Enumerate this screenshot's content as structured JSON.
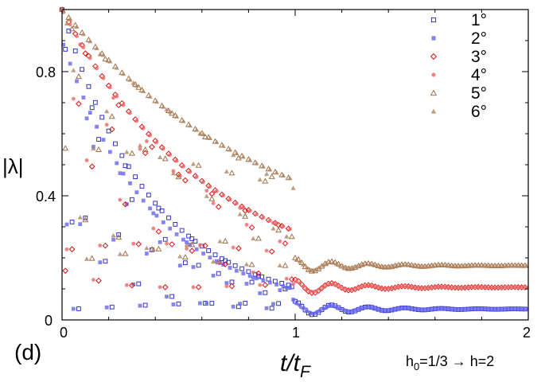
{
  "chart_data": {
    "type": "scatter",
    "title": "",
    "panel_label": "(d)",
    "xlabel_main": "t/t",
    "xlabel_sub": "F",
    "ylabel": "|λ|",
    "xlim": [
      0,
      2
    ],
    "ylim": [
      0,
      1
    ],
    "xticks": [
      0,
      1,
      2
    ],
    "xtick_labels": [
      "0",
      "1",
      "2"
    ],
    "yticks": [
      0,
      0.4,
      0.8
    ],
    "ytick_labels": [
      "0",
      "0.4",
      "0.8"
    ],
    "annotation": {
      "h": "h",
      "sub": "0",
      "rest": "=1/3 → h=2"
    },
    "legend_position": "top-right",
    "series": [
      {
        "name": "1°",
        "color": "#3333cc",
        "marker": "open-square",
        "plateau": 0.035,
        "start": 1.0,
        "amp": 0.025
      },
      {
        "name": "2°",
        "color": "#6666ee",
        "marker": "filled-square",
        "plateau": 0.035,
        "start": 0.9,
        "amp": 0.02
      },
      {
        "name": "3°",
        "color": "#e01010",
        "marker": "open-diamond",
        "plateau": 0.105,
        "start": 1.0,
        "amp": 0.025
      },
      {
        "name": "4°",
        "color": "#ee6666",
        "marker": "filled-circle",
        "plateau": 0.105,
        "start": 1.0,
        "amp": 0.02
      },
      {
        "name": "5°",
        "color": "#a0724a",
        "marker": "open-triangle",
        "plateau": 0.175,
        "start": 1.0,
        "amp": 0.025
      },
      {
        "name": "6°",
        "color": "#b08460",
        "marker": "filled-triangle",
        "plateau": 0.175,
        "start": 1.0,
        "amp": 0.02
      }
    ]
  }
}
